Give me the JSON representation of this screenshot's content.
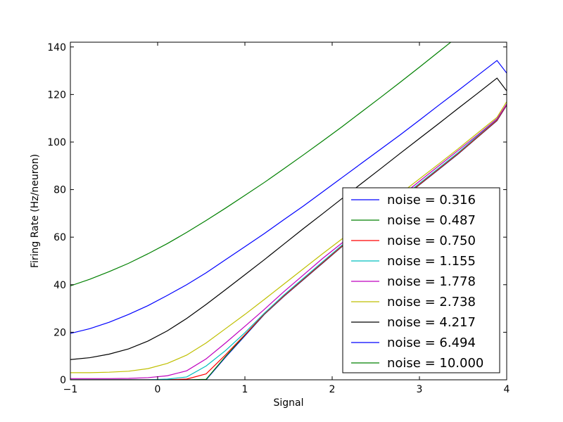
{
  "chart_data": {
    "type": "line",
    "title": "",
    "xlabel": "Signal",
    "ylabel": "Firing Rate (Hz/neuron)",
    "xlim": [
      -1,
      4
    ],
    "ylim": [
      0,
      142
    ],
    "xticks": [
      -1,
      0,
      1,
      2,
      3,
      4
    ],
    "xtick_labels": [
      "−1",
      "0",
      "1",
      "2",
      "3",
      "4"
    ],
    "yticks": [
      0,
      20,
      40,
      60,
      80,
      100,
      120,
      140
    ],
    "ytick_labels": [
      "0",
      "20",
      "40",
      "60",
      "80",
      "100",
      "120",
      "140"
    ],
    "grid": false,
    "legend_position": "lower-right",
    "x": [
      -1.0,
      -0.7778,
      -0.5556,
      -0.3333,
      -0.1111,
      0.1111,
      0.3333,
      0.5556,
      0.7778,
      1.0,
      1.2222,
      1.4444,
      1.6667,
      1.8889,
      2.1111,
      2.3333,
      2.5556,
      2.7778,
      3.0,
      3.2222,
      3.4444,
      3.6667,
      3.8889,
      4.0
    ],
    "series": [
      {
        "name": "noise = 0.316",
        "color": "#0000ff",
        "values": [
          0,
          0,
          0,
          0,
          0,
          0,
          0,
          0,
          9.5,
          18.5,
          27.5,
          35.0,
          42.0,
          49.0,
          56.0,
          62.5,
          69.0,
          75.5,
          82.0,
          88.5,
          95.0,
          102.0,
          109.0,
          115.5
        ]
      },
      {
        "name": "noise = 0.487",
        "color": "#008000",
        "values": [
          0,
          0,
          0,
          0,
          0,
          0,
          0,
          0.2,
          9.8,
          18.8,
          27.6,
          35.1,
          42.1,
          49.1,
          56.1,
          62.6,
          69.1,
          75.6,
          82.1,
          88.6,
          95.1,
          102.1,
          109.1,
          115.6
        ]
      },
      {
        "name": "noise = 0.750",
        "color": "#ff0000",
        "values": [
          0,
          0,
          0,
          0,
          0,
          0,
          0.3,
          2.5,
          10.5,
          19.0,
          27.7,
          35.2,
          42.2,
          49.2,
          56.2,
          62.7,
          69.2,
          75.7,
          82.2,
          88.7,
          95.2,
          102.2,
          109.2,
          115.7
        ]
      },
      {
        "name": "noise = 1.155",
        "color": "#00bfbf",
        "values": [
          0,
          0,
          0,
          0,
          0,
          0.3,
          1.2,
          5.8,
          12.3,
          19.8,
          28.0,
          35.6,
          42.6,
          49.6,
          56.6,
          63.1,
          69.6,
          76.1,
          82.6,
          89.1,
          95.6,
          102.6,
          109.6,
          116.0
        ]
      },
      {
        "name": "noise = 1.778",
        "color": "#bf00bf",
        "values": [
          0.5,
          0.5,
          0.5,
          0.6,
          0.9,
          1.7,
          3.8,
          8.8,
          15.5,
          22.5,
          29.6,
          37.0,
          44.0,
          51.0,
          57.5,
          64.0,
          70.5,
          77.0,
          83.5,
          90.0,
          96.5,
          103.0,
          109.8,
          116.0
        ]
      },
      {
        "name": "noise = 2.738",
        "color": "#bfbf00",
        "values": [
          3.0,
          3.0,
          3.2,
          3.6,
          4.7,
          6.9,
          10.4,
          15.5,
          21.5,
          27.5,
          33.8,
          40.2,
          46.6,
          53.0,
          59.2,
          65.5,
          71.8,
          78.2,
          84.5,
          90.8,
          97.2,
          103.8,
          110.4,
          117.0
        ]
      },
      {
        "name": "noise = 4.217",
        "color": "#000000",
        "values": [
          8.5,
          9.3,
          10.8,
          13.0,
          16.3,
          20.6,
          25.8,
          31.7,
          37.9,
          44.2,
          50.5,
          57.0,
          63.5,
          69.8,
          76.2,
          82.5,
          88.8,
          95.2,
          101.5,
          107.8,
          114.2,
          120.5,
          126.9,
          121.5
        ]
      },
      {
        "name": "noise = 6.494",
        "color": "#0000ff",
        "values": [
          19.5,
          21.5,
          24.2,
          27.5,
          31.2,
          35.5,
          40.0,
          45.0,
          50.5,
          56.0,
          61.5,
          67.3,
          73.0,
          79.0,
          85.0,
          91.0,
          97.0,
          103.0,
          109.2,
          115.5,
          121.7,
          128.0,
          134.3,
          129.0
        ]
      },
      {
        "name": "noise = 10.000",
        "color": "#008000",
        "values": [
          39.5,
          42.3,
          45.5,
          49.0,
          53.0,
          57.3,
          62.0,
          67.0,
          72.2,
          77.6,
          83.0,
          88.7,
          94.5,
          100.4,
          106.4,
          112.6,
          118.8,
          125.1,
          131.5,
          138.0,
          144.5,
          151.0,
          157.6,
          142.0
        ]
      }
    ]
  }
}
